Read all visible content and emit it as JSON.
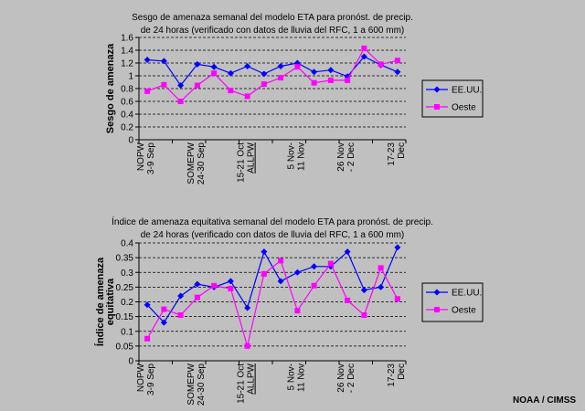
{
  "credit": "NOAA / CIMSS",
  "chart_data": [
    {
      "type": "line",
      "title": "Sesgo de amenaza semanal del modelo ETA para pronóst. de precip.",
      "subtitle": "de 24 horas (verificado con datos de lluvia del RFC, 1 a 600 mm)",
      "ylabel": [
        "Sesgo de amenaza"
      ],
      "xlabel": "",
      "ylim": [
        0,
        1.6
      ],
      "yticks": [
        "0",
        "0.2",
        "0.4",
        "0.6",
        "0.8",
        "1",
        "1.2",
        "1.4",
        "1.6"
      ],
      "grid": true,
      "legend_position": "right",
      "categories": [
        "NOPW 3-9 Sep",
        "",
        "",
        "SOMEPW 24-30 Sep",
        "",
        "",
        "15-21 Oct ALLPW",
        "",
        "",
        "5 Nov-11 Nov",
        "",
        "",
        "26 Nov - 2 Dec",
        "",
        "",
        "17-23 Dec"
      ],
      "category_labels": [
        {
          "index": 0,
          "lines": [
            "NOPW",
            "3-9 Sep"
          ],
          "underline": false
        },
        {
          "index": 3,
          "lines": [
            "SOMEPW",
            "24-30 Sep"
          ],
          "underline": false
        },
        {
          "index": 6,
          "lines": [
            "15-21 Oct",
            "ALLPW"
          ],
          "underline": true
        },
        {
          "index": 9,
          "lines": [
            "5 Nov-",
            "11 Nov"
          ],
          "underline": false
        },
        {
          "index": 12,
          "lines": [
            "26 Nov",
            "- 2 Dec"
          ],
          "underline": false
        },
        {
          "index": 15,
          "lines": [
            "17-23",
            "Dec"
          ],
          "underline": false
        }
      ],
      "series": [
        {
          "name": "EE.UU.",
          "color": "#0000ff",
          "marker": "diamond",
          "values": [
            1.25,
            1.23,
            0.85,
            1.18,
            1.14,
            1.04,
            1.15,
            1.03,
            1.15,
            1.2,
            1.06,
            1.09,
            0.99,
            1.3,
            1.17,
            1.06
          ]
        },
        {
          "name": "Oeste",
          "color": "#ff00ff",
          "marker": "square",
          "values": [
            0.76,
            0.86,
            0.6,
            0.85,
            1.04,
            0.77,
            0.68,
            0.87,
            0.97,
            1.14,
            0.89,
            0.93,
            0.93,
            1.43,
            1.18,
            1.24
          ]
        }
      ]
    },
    {
      "type": "line",
      "title": "Índice de amenaza equitativa semanal del modelo ETA para pronóst. de precip.",
      "subtitle": "de 24 horas (verificado con datos de lluvia del RFC, 1 a 600 mm)",
      "ylabel": [
        "Índice de amenaza",
        "equitativa"
      ],
      "xlabel": "",
      "ylim": [
        0,
        0.4
      ],
      "yticks": [
        "0",
        "0.05",
        "0.1",
        "0.15",
        "0.2",
        "0.25",
        "0.3",
        "0.35",
        "0.4"
      ],
      "grid": true,
      "legend_position": "right",
      "categories": [
        "NOPW 3-9 Sep",
        "",
        "",
        "SOMEPW 24-30 Sep",
        "",
        "",
        "15-21 Oct ALLPW",
        "",
        "",
        "5 Nov-11 Nov",
        "",
        "",
        "26 Nov - 2 Dec",
        "",
        "",
        "17-23 Dec"
      ],
      "category_labels": [
        {
          "index": 0,
          "lines": [
            "NOPW",
            "3-9 Sep"
          ],
          "underline": false
        },
        {
          "index": 3,
          "lines": [
            "SOMEPW",
            "24-30 Sep"
          ],
          "underline": false
        },
        {
          "index": 6,
          "lines": [
            "15-21 Oct",
            "ALLPW"
          ],
          "underline": true
        },
        {
          "index": 9,
          "lines": [
            "5 Nov-",
            "11 Nov"
          ],
          "underline": false
        },
        {
          "index": 12,
          "lines": [
            "26 Nov",
            "- 2 Dec"
          ],
          "underline": false
        },
        {
          "index": 15,
          "lines": [
            "17-23",
            "Dec"
          ],
          "underline": false
        }
      ],
      "series": [
        {
          "name": "EE.UU.",
          "color": "#0000ff",
          "marker": "diamond",
          "values": [
            0.19,
            0.13,
            0.22,
            0.26,
            0.25,
            0.27,
            0.18,
            0.37,
            0.27,
            0.3,
            0.32,
            0.32,
            0.37,
            0.24,
            0.25,
            0.385
          ]
        },
        {
          "name": "Oeste",
          "color": "#ff00ff",
          "marker": "square",
          "values": [
            0.075,
            0.175,
            0.155,
            0.215,
            0.255,
            0.245,
            0.05,
            0.295,
            0.34,
            0.17,
            0.255,
            0.33,
            0.205,
            0.155,
            0.315,
            0.21
          ]
        }
      ]
    }
  ]
}
